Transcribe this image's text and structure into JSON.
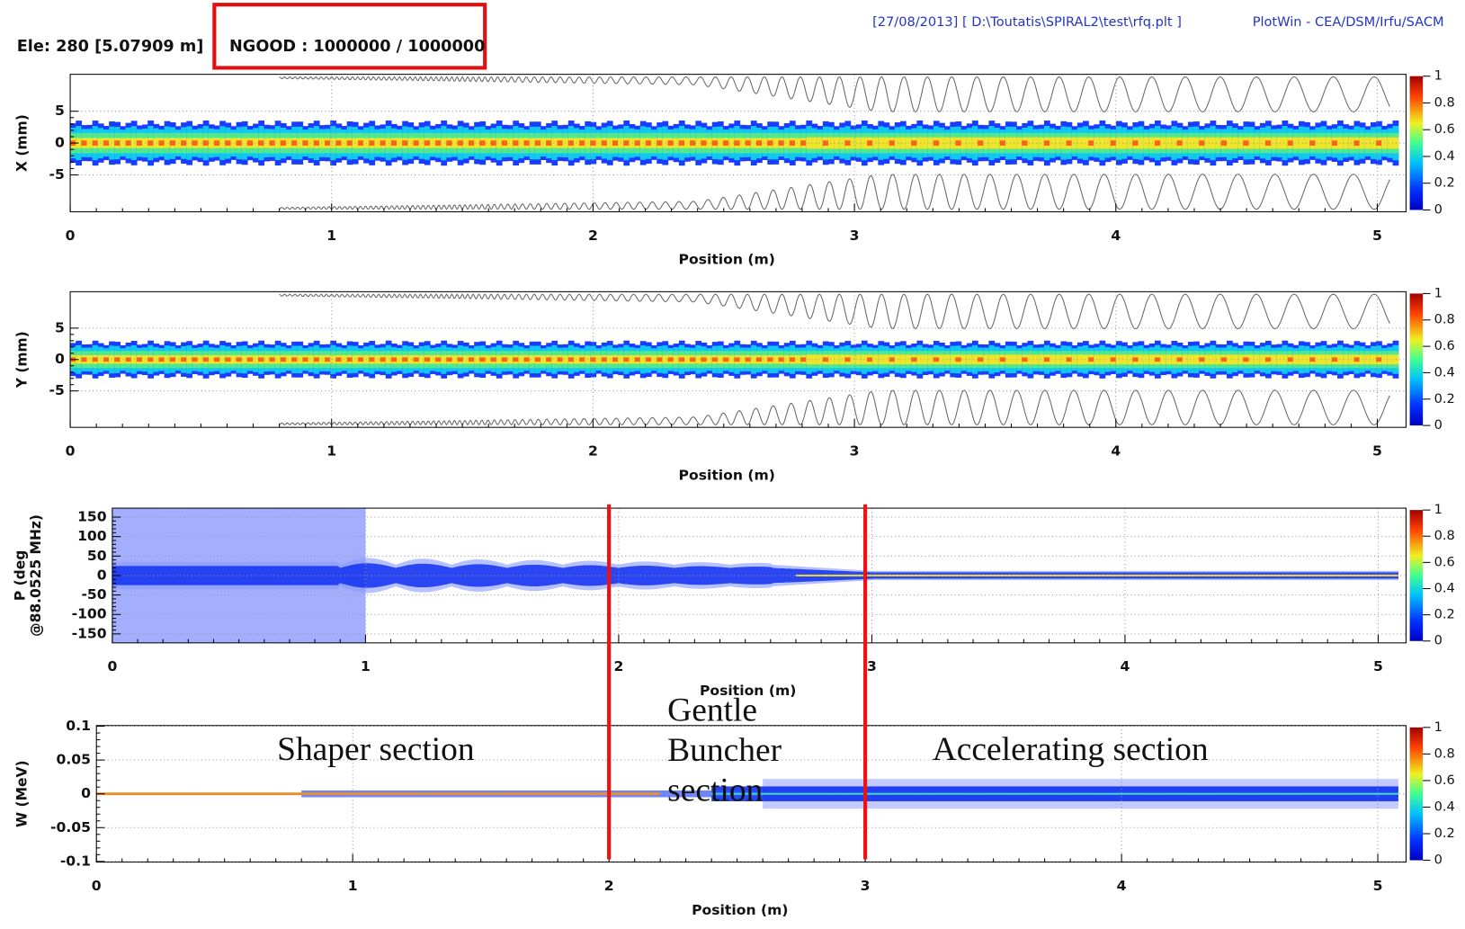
{
  "header": {
    "element": "Ele: 280 [5.07909 m]",
    "ngood": "NGOOD : 1000000 / 1000000",
    "file": "[27/08/2013] [ D:\\Toutatis\\SPIRAL2\\test\\rfq.plt ]",
    "app": "PlotWin - CEA/DSM/Irfu/SACM"
  },
  "chart_data": [
    {
      "type": "heatmap",
      "ylabel": "X (mm)",
      "xlabel": "Position (m)",
      "xlim": [
        0,
        5.11
      ],
      "xticks": [
        0,
        1,
        2,
        3,
        4,
        5
      ],
      "ylim": [
        -10.8,
        10.8
      ],
      "yticks": [
        -5,
        0,
        5
      ],
      "colorbar_ticks": [
        0,
        0.2,
        0.4,
        0.6,
        0.8,
        1
      ],
      "grid": true
    },
    {
      "type": "heatmap",
      "ylabel": "Y (mm)",
      "xlabel": "Position (m)",
      "xlim": [
        0,
        5.11
      ],
      "xticks": [
        0,
        1,
        2,
        3,
        4,
        5
      ],
      "ylim": [
        -10.8,
        10.8
      ],
      "yticks": [
        -5,
        0,
        5
      ],
      "colorbar_ticks": [
        0,
        0.2,
        0.4,
        0.6,
        0.8,
        1
      ],
      "grid": true
    },
    {
      "type": "heatmap",
      "ylabel": [
        "P (deg",
        "@88.0525 MHz)"
      ],
      "xlabel": "Position (m)",
      "xlim": [
        0,
        5.11
      ],
      "xticks": [
        0,
        1,
        2,
        3,
        4,
        5
      ],
      "ylim": [
        -173,
        173
      ],
      "yticks": [
        -150,
        -100,
        -50,
        0,
        50,
        100,
        150
      ],
      "colorbar_ticks": [
        0,
        0.2,
        0.4,
        0.6,
        0.8,
        1
      ],
      "grid": true
    },
    {
      "type": "heatmap",
      "ylabel": "W (MeV)",
      "xlabel": "Position (m)",
      "xlim": [
        0,
        5.11
      ],
      "xticks": [
        0,
        1,
        2,
        3,
        4,
        5
      ],
      "ylim": [
        -0.101,
        0.101
      ],
      "yticks": [
        -0.1,
        -0.05,
        0,
        0.05,
        0.1
      ],
      "colorbar_ticks": [
        0,
        0.2,
        0.4,
        0.6,
        0.8,
        1
      ],
      "grid": true
    }
  ],
  "annotations": {
    "boundaries": [
      2,
      3
    ],
    "color": "#ee1111",
    "shaper": "Shaper section",
    "buncher": [
      "Gentle",
      "Buncher",
      "section"
    ],
    "accelerating": "Accelerating section"
  }
}
